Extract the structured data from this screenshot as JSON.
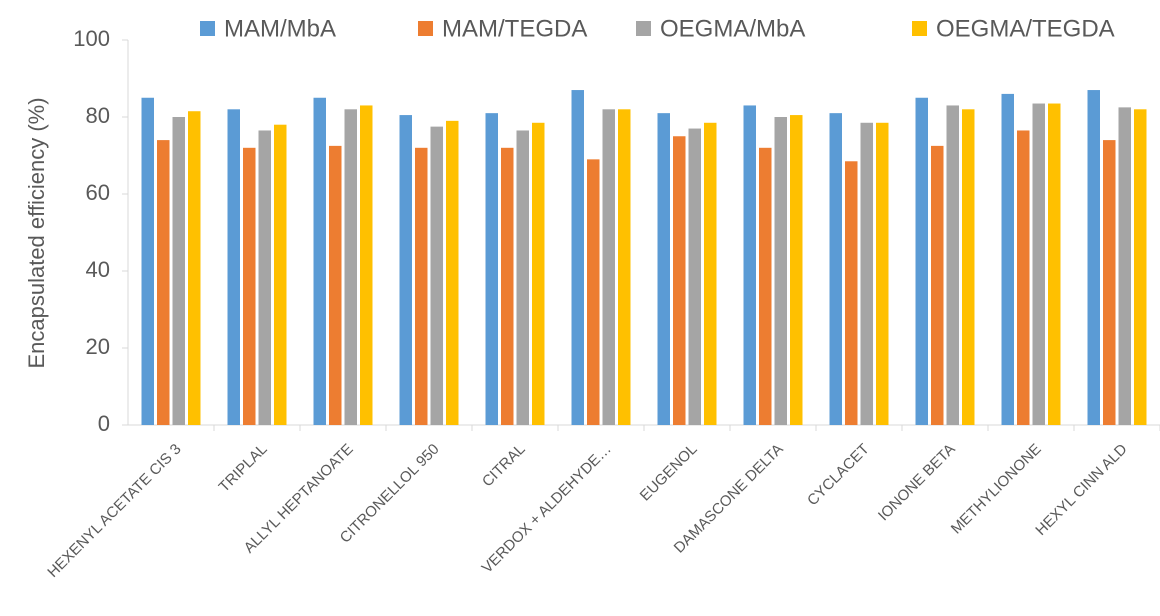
{
  "chart_data": {
    "type": "bar",
    "y_label": "Encapsulated efficiency (%)",
    "categories": [
      "HEXENYL ACETATE CIS 3",
      "TRIPLAL",
      "ALLYL HEPTANOATE",
      "CITRONELLOL 950",
      "CITRAL",
      "VERDOX + ALDEHYDE…",
      "EUGENOL",
      "DAMASCONE DELTA",
      "CYCLACET",
      "IONONE BETA",
      "METHYLIONONE",
      "HEXYL CINN ALD"
    ],
    "series": [
      {
        "name": "MAM/MbA",
        "color": "#5b9bd5",
        "values": [
          85,
          82,
          85,
          80.5,
          81,
          87,
          81,
          83,
          81,
          85,
          86,
          87
        ]
      },
      {
        "name": "MAM/TEGDA",
        "color": "#ed7d31",
        "values": [
          74,
          72,
          72.5,
          72,
          72,
          69,
          75,
          72,
          68.5,
          72.5,
          76.5,
          74
        ]
      },
      {
        "name": "OEGMA/MbA",
        "color": "#a5a5a5",
        "values": [
          80,
          76.5,
          82,
          77.5,
          76.5,
          82,
          77,
          80,
          78.5,
          83,
          83.5,
          82.5
        ]
      },
      {
        "name": "OEGMA/TEGDA",
        "color": "#ffc000",
        "values": [
          81.5,
          78,
          83,
          79,
          78.5,
          82,
          78.5,
          80.5,
          78.5,
          82,
          83.5,
          82
        ]
      }
    ],
    "ylim": [
      0,
      100
    ],
    "yticks": [
      0,
      20,
      40,
      60,
      80,
      100
    ],
    "grid": false,
    "legend": "top"
  }
}
